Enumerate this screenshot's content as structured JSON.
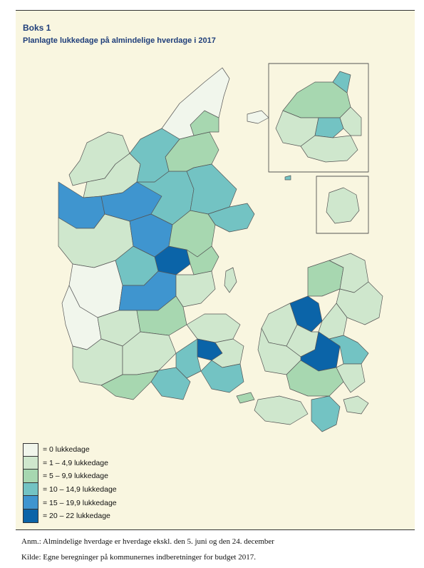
{
  "box": {
    "label": "Boks 1",
    "title": "Planlagte lukkedage på almindelige hverdage i 2017"
  },
  "legend": [
    {
      "label": "= 0 lukkedage",
      "color": "#f1f6ec"
    },
    {
      "label": "= 1 – 4,9 lukkedage",
      "color": "#cfe7cd"
    },
    {
      "label": "= 5 – 9,9 lukkedage",
      "color": "#a7d7b0"
    },
    {
      "label": "= 10 – 14,9 lukkedage",
      "color": "#73c3c3"
    },
    {
      "label": "= 15 – 19,9 lukkedage",
      "color": "#3f95cf"
    },
    {
      "label": "= 20 – 22 lukkedage",
      "color": "#0b64a8"
    }
  ],
  "map": {
    "border_color": "#555555",
    "inset_frame_color": "#555555"
  },
  "footer": {
    "note": "Anm.: Almindelige hverdage er hverdage ekskl. den 5. juni og den 24. december",
    "source": "Kilde: Egne beregninger på kommunernes indberetninger for budget 2017."
  }
}
